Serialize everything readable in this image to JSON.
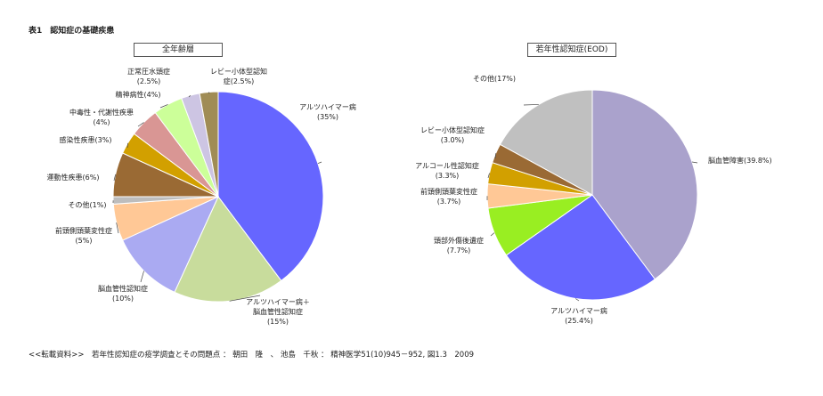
{
  "title": "表1　認知症の基礎疾患",
  "source": "<<転載資料>>　若年性認知症の疫学調査とその問題点 ： 朝田　隆　、 池島　千秋 ： 精神医学51(10)945－952, 図1.3　2009",
  "chart_data": [
    {
      "type": "pie",
      "title": "全年齢層",
      "slices": [
        {
          "label": [
            "アルツハイマー病",
            "(35%)"
          ],
          "value": 35,
          "color": "#6666ff"
        },
        {
          "label": [
            "アルツハイマー病＋",
            "脳血管性認知症",
            "(15%)"
          ],
          "value": 15,
          "color": "#c8dc9c"
        },
        {
          "label": [
            "脳血管性認知症",
            "(10%)"
          ],
          "value": 10,
          "color": "#aaaaf2"
        },
        {
          "label": [
            "前頭側頭葉変性症",
            "(5%)"
          ],
          "value": 5,
          "color": "#ffc896"
        },
        {
          "label": [
            "その他(1%)"
          ],
          "value": 1,
          "color": "#bdbdbd"
        },
        {
          "label": [
            "運動性疾患(6%)"
          ],
          "value": 6,
          "color": "#9a6a34"
        },
        {
          "label": [
            "感染性疾患(3%)"
          ],
          "value": 3,
          "color": "#d2a000"
        },
        {
          "label": [
            "中毒性・代謝性疾患",
            "(4%)"
          ],
          "value": 4,
          "color": "#d99694"
        },
        {
          "label": [
            "精神病性(4%)"
          ],
          "value": 4,
          "color": "#ccff99"
        },
        {
          "label": [
            "正常圧水頭症",
            "(2.5%)"
          ],
          "value": 2.5,
          "color": "#cdc5e3"
        },
        {
          "label": [
            "レビー小体型認知",
            "症(2.5%)"
          ],
          "value": 2.5,
          "color": "#a08c55"
        }
      ]
    },
    {
      "type": "pie",
      "title": "若年性認知症(EOD)",
      "slices": [
        {
          "label": [
            "脳血管障害(39.8%)"
          ],
          "value": 39.8,
          "color": "#aaa2cc"
        },
        {
          "label": [
            "アルツハイマー病",
            "(25.4%)"
          ],
          "value": 25.4,
          "color": "#6666ff"
        },
        {
          "label": [
            "頭部外傷後遺症",
            "(7.7%)"
          ],
          "value": 7.7,
          "color": "#99ee22"
        },
        {
          "label": [
            "前頭側頭葉変性症",
            "(3.7%)"
          ],
          "value": 3.7,
          "color": "#ffc896"
        },
        {
          "label": [
            "アルコール性認知症",
            "(3.3%)"
          ],
          "value": 3.3,
          "color": "#d2a000"
        },
        {
          "label": [
            "レビー小体型認知症",
            "(3.0%)"
          ],
          "value": 3.0,
          "color": "#9a6a34"
        },
        {
          "label": [
            "その他(17%)"
          ],
          "value": 17,
          "color": "#c0c0c0"
        }
      ]
    }
  ]
}
